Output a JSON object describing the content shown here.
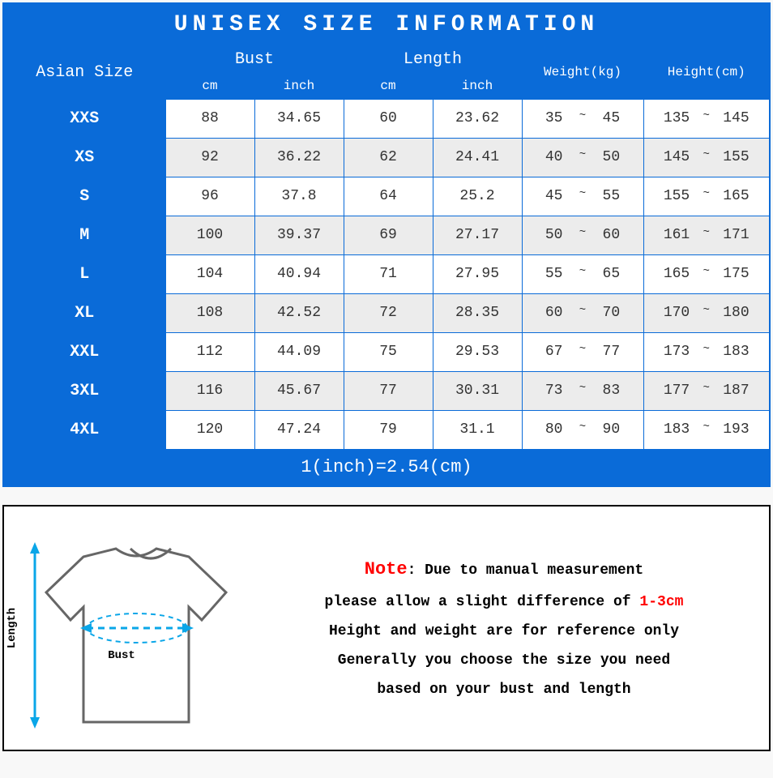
{
  "colors": {
    "primary_blue": "#0a6bd8",
    "white": "#ffffff",
    "alt_row": "#ececec",
    "text_dark": "#333333",
    "note_red": "#ff0000",
    "border_black": "#000000",
    "tshirt_outline": "#666666",
    "arrow_blue": "#0aa6e8"
  },
  "table": {
    "title": "UNISEX SIZE INFORMATION",
    "headers": {
      "asian_size": "Asian Size",
      "bust": "Bust",
      "length": "Length",
      "weight": "Weight(kg)",
      "height": "Height(cm)",
      "cm": "cm",
      "inch": "inch"
    },
    "col_widths": {
      "asian_size": 200,
      "bust_cm": 110,
      "bust_inch": 110,
      "length_cm": 110,
      "length_inch": 110,
      "weight": 150,
      "height": 158
    },
    "rows": [
      {
        "size": "XXS",
        "bust_cm": "88",
        "bust_in": "34.65",
        "len_cm": "60",
        "len_in": "23.62",
        "w_lo": "35",
        "w_hi": "45",
        "h_lo": "135",
        "h_hi": "145"
      },
      {
        "size": "XS",
        "bust_cm": "92",
        "bust_in": "36.22",
        "len_cm": "62",
        "len_in": "24.41",
        "w_lo": "40",
        "w_hi": "50",
        "h_lo": "145",
        "h_hi": "155"
      },
      {
        "size": "S",
        "bust_cm": "96",
        "bust_in": "37.8",
        "len_cm": "64",
        "len_in": "25.2",
        "w_lo": "45",
        "w_hi": "55",
        "h_lo": "155",
        "h_hi": "165"
      },
      {
        "size": "M",
        "bust_cm": "100",
        "bust_in": "39.37",
        "len_cm": "69",
        "len_in": "27.17",
        "w_lo": "50",
        "w_hi": "60",
        "h_lo": "161",
        "h_hi": "171"
      },
      {
        "size": "L",
        "bust_cm": "104",
        "bust_in": "40.94",
        "len_cm": "71",
        "len_in": "27.95",
        "w_lo": "55",
        "w_hi": "65",
        "h_lo": "165",
        "h_hi": "175"
      },
      {
        "size": "XL",
        "bust_cm": "108",
        "bust_in": "42.52",
        "len_cm": "72",
        "len_in": "28.35",
        "w_lo": "60",
        "w_hi": "70",
        "h_lo": "170",
        "h_hi": "180"
      },
      {
        "size": "XXL",
        "bust_cm": "112",
        "bust_in": "44.09",
        "len_cm": "75",
        "len_in": "29.53",
        "w_lo": "67",
        "w_hi": "77",
        "h_lo": "173",
        "h_hi": "183"
      },
      {
        "size": "3XL",
        "bust_cm": "116",
        "bust_in": "45.67",
        "len_cm": "77",
        "len_in": "30.31",
        "w_lo": "73",
        "w_hi": "83",
        "h_lo": "177",
        "h_hi": "187"
      },
      {
        "size": "4XL",
        "bust_cm": "120",
        "bust_in": "47.24",
        "len_cm": "79",
        "len_in": "31.1",
        "w_lo": "80",
        "w_hi": "90",
        "h_lo": "183",
        "h_hi": "193"
      }
    ],
    "footer": "1(inch)=2.54(cm)"
  },
  "diagram": {
    "length_label": "Length",
    "bust_label": "Bust"
  },
  "note": {
    "title": "Note",
    "line1a": ": Due to manual measurement",
    "line2a": "please allow a slight difference of ",
    "line2b": "1-3cm",
    "line3": "Height and weight are for reference only",
    "line4": "Generally you choose the size you need",
    "line5": "based on your bust and length"
  }
}
